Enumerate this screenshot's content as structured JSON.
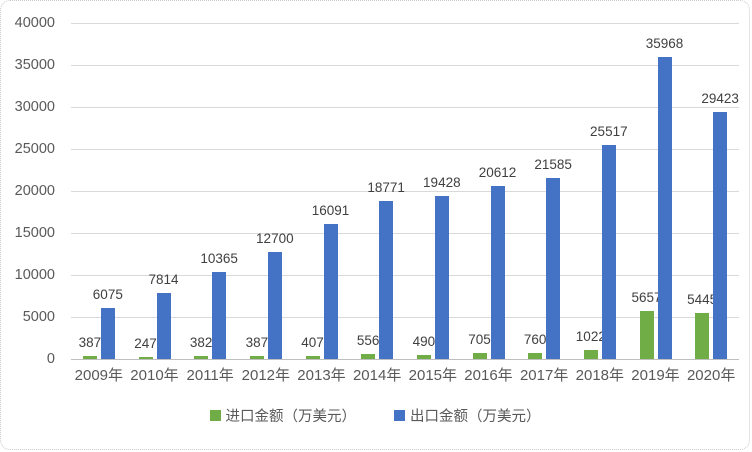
{
  "chart_data": {
    "type": "bar",
    "title": "",
    "categories": [
      "2009年",
      "2010年",
      "2011年",
      "2012年",
      "2013年",
      "2014年",
      "2015年",
      "2016年",
      "2017年",
      "2018年",
      "2019年",
      "2020年"
    ],
    "series": [
      {
        "key": "import",
        "name": "进口金额（万美元）",
        "color": "#70AD47",
        "values": [
          387,
          247,
          382,
          387,
          407,
          556,
          490,
          705,
          760,
          1022,
          5657,
          5445
        ]
      },
      {
        "key": "export",
        "name": "出口金额（万美元）",
        "color": "#4472C4",
        "values": [
          6075,
          7814,
          10365,
          12700,
          16091,
          18771,
          19428,
          20612,
          21585,
          25517,
          35968,
          29423
        ]
      }
    ],
    "xlabel": "",
    "ylabel": "",
    "ylim": [
      0,
      40000
    ],
    "ytick_step": 5000,
    "yticks": [
      "0",
      "5000",
      "10000",
      "15000",
      "20000",
      "25000",
      "30000",
      "35000",
      "40000"
    ],
    "grid": true,
    "data_labels": true,
    "legend_position": "bottom",
    "colors": {
      "axis_text": "#595959",
      "data_label_text": "#404040",
      "gridline": "#D9D9D9",
      "axis_line": "#BFBFBF"
    }
  }
}
